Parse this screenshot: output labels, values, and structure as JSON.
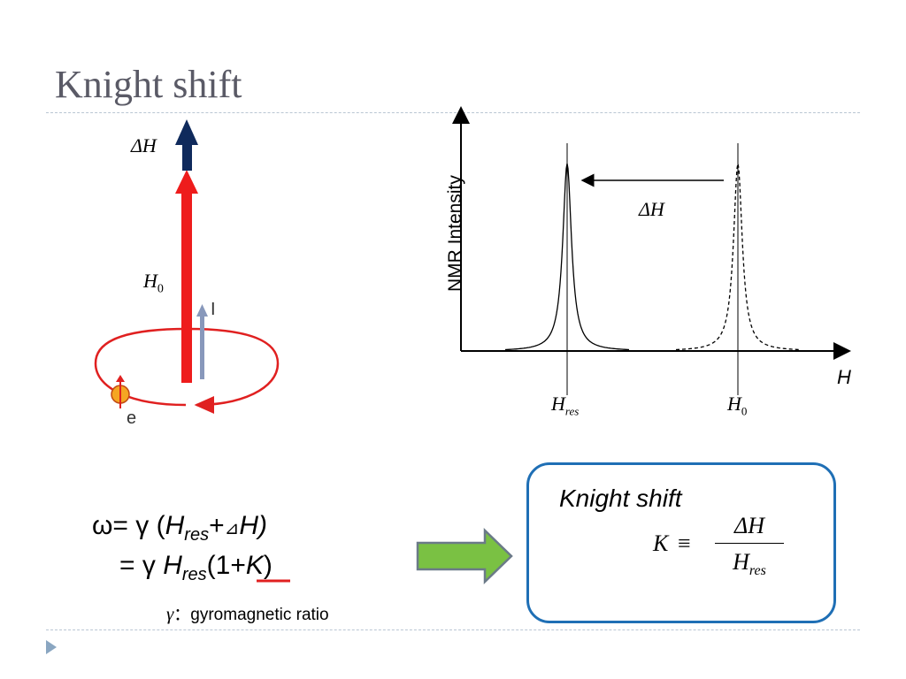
{
  "slide": {
    "title": "Knight shift"
  },
  "diagram": {
    "delta_h_label": "ΔH",
    "h0_label": "H",
    "h0_sub": "0",
    "i_label": "I",
    "e_label": "e",
    "colors": {
      "field_arrow": "#ee1c1c",
      "shift_arrow": "#0f2a5c",
      "spin_arrow": "#8898bb",
      "orbit": "#e02020",
      "electron": "#f5a623"
    }
  },
  "chart": {
    "ylabel": "NMR Intensity",
    "xlabel": "H",
    "shift_label": "ΔH",
    "tick_hres": "H",
    "tick_hres_sub": "res",
    "tick_h0": "H",
    "tick_h0_sub": "0"
  },
  "chart_data": {
    "type": "line",
    "title": "",
    "xlabel": "H",
    "ylabel": "NMR Intensity",
    "series": [
      {
        "style": "solid",
        "center": "H_res",
        "shape": "lorentzian"
      },
      {
        "style": "dashed",
        "center": "H_0",
        "shape": "lorentzian"
      }
    ]
  },
  "equations": {
    "line1": {
      "omega": "ω= γ (",
      "h": "H",
      "h_sub": "res",
      "plus": "+",
      "delta": "⊿",
      "h2": "H",
      "close": ")"
    },
    "line2": {
      "prefix": "= γ ",
      "h": "H",
      "h_sub": "res",
      "open": "(",
      "one": "1",
      "plus": "+",
      "k": "K",
      "close": ")"
    },
    "ratio_symbol": "γ",
    "ratio_text": "：gyromagnetic ratio"
  },
  "definition_box": {
    "title": "Knight shift",
    "k": "K",
    "equiv": "≡",
    "numerator": "ΔH",
    "denominator": "H",
    "denominator_sub": "res"
  },
  "big_arrow": {
    "fill": "#7ac143",
    "stroke": "#6b7a88"
  }
}
